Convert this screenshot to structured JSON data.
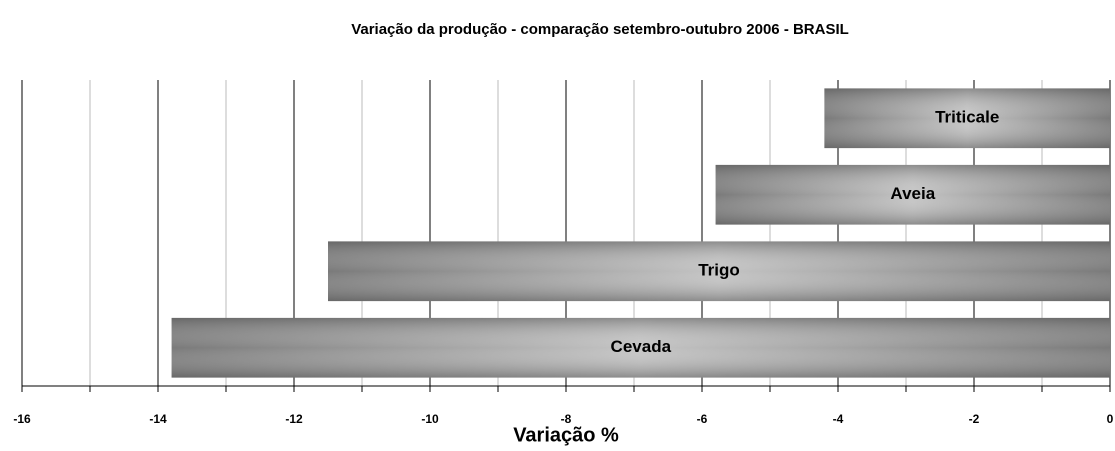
{
  "chart_data": {
    "type": "barh",
    "title": "Variação da produção - comparação setembro-outubro 2006 - BRASIL",
    "xlabel": "Variação %",
    "categories": [
      "Cevada",
      "Trigo",
      "Aveia",
      "Triticale"
    ],
    "values": [
      -13.8,
      -11.5,
      -5.8,
      -4.2
    ],
    "color": "#8c8c8c",
    "xlim": [
      -16,
      0
    ],
    "xticks": [
      -16,
      -14,
      -12,
      -10,
      -8,
      -6,
      -4,
      -2,
      0
    ],
    "xticks_minor": [
      -15,
      -13,
      -11,
      -9,
      -7,
      -5,
      -3,
      -1
    ],
    "grid": true
  }
}
